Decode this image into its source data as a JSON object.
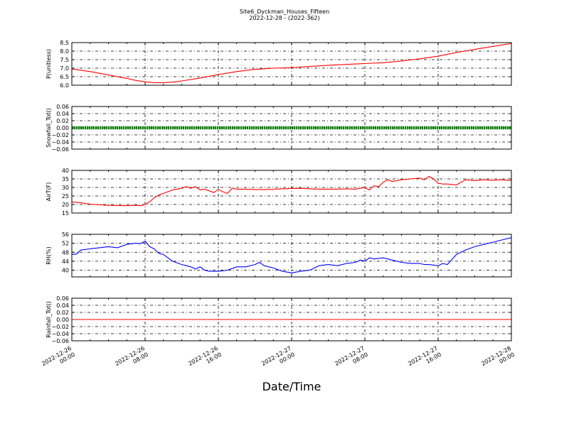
{
  "figure": {
    "title": "Site6_Dyckman_Houses_Fifteen",
    "subtitle": "2022-12-28 - (2022-362)",
    "xlabel": "Date/Time"
  },
  "chart_data": [
    {
      "type": "line",
      "ylabel": "P(unitless)",
      "ylim": [
        6.0,
        8.5
      ],
      "yticks": [
        "6.0",
        "6.5",
        "7.0",
        "7.5",
        "8.0",
        "8.5"
      ],
      "ytick_values": [
        6.0,
        6.5,
        7.0,
        7.5,
        8.0,
        8.5
      ],
      "color": "#ff0000",
      "grid": true,
      "x_hours": [
        0,
        2,
        4,
        6,
        7,
        8,
        9,
        10,
        11,
        12,
        14,
        16,
        18,
        20,
        22,
        24,
        26,
        28,
        30,
        32,
        34,
        36,
        38,
        40,
        42,
        44,
        46,
        48
      ],
      "values": [
        6.95,
        6.8,
        6.6,
        6.4,
        6.28,
        6.2,
        6.15,
        6.15,
        6.18,
        6.25,
        6.42,
        6.62,
        6.8,
        6.93,
        7.0,
        7.03,
        7.1,
        7.17,
        7.22,
        7.27,
        7.32,
        7.42,
        7.55,
        7.7,
        7.92,
        8.1,
        8.28,
        8.45
      ]
    },
    {
      "type": "line",
      "ylabel": "Snowfall_Tot()",
      "ylim": [
        -0.06,
        0.06
      ],
      "yticks": [
        "0.06",
        "0.04",
        "0.02",
        "0.00",
        "−0.02",
        "−0.04",
        "−0.06"
      ],
      "ytick_values": [
        0.06,
        0.04,
        0.02,
        0.0,
        -0.02,
        -0.04,
        -0.06
      ],
      "color": "#008000",
      "marker": "dot",
      "grid": true,
      "x_hours": [
        0,
        48
      ],
      "values": [
        0.0,
        0.0
      ]
    },
    {
      "type": "line",
      "ylabel": "AirT(F)",
      "ylim": [
        15,
        40
      ],
      "yticks": [
        "40",
        "35",
        "30",
        "25",
        "20",
        "15"
      ],
      "ytick_values": [
        40,
        35,
        30,
        25,
        20,
        15
      ],
      "color": "#ff0000",
      "grid": true,
      "x_hours": [
        0,
        1,
        2,
        3,
        4,
        5,
        6,
        7,
        7.5,
        8,
        8.5,
        9,
        9.5,
        10,
        11,
        12,
        12.5,
        13,
        13.5,
        14,
        14.5,
        15,
        15.5,
        16,
        16.5,
        17,
        17.5,
        18,
        19,
        20,
        21,
        22,
        23,
        24,
        25,
        26,
        27,
        28,
        29,
        30,
        31,
        32,
        32.5,
        33,
        33.5,
        34,
        34.5,
        35,
        36,
        37,
        38,
        38.5,
        39,
        39.5,
        40,
        40.5,
        41,
        42,
        43,
        44,
        45,
        46,
        47,
        48
      ],
      "values": [
        21.5,
        21.0,
        20.2,
        19.8,
        19.5,
        19.4,
        19.3,
        19.5,
        19.3,
        20.0,
        21.5,
        24.0,
        25.5,
        26.5,
        28.5,
        29.5,
        30.5,
        29.5,
        30.5,
        28.5,
        29.0,
        28.0,
        27.0,
        28.8,
        27.5,
        26.5,
        29.5,
        29.0,
        29.0,
        28.8,
        28.8,
        28.9,
        29.2,
        29.4,
        29.5,
        29.2,
        29.0,
        29.0,
        29.0,
        29.2,
        29.0,
        30.0,
        28.5,
        31.0,
        30.5,
        33.0,
        34.5,
        33.5,
        34.5,
        35.0,
        35.5,
        34.5,
        36.5,
        35.0,
        32.5,
        32.0,
        32.0,
        31.5,
        34.5,
        34.0,
        34.5,
        34.2,
        34.5,
        34.0
      ]
    },
    {
      "type": "line",
      "ylabel": "RH(%)",
      "ylim": [
        37,
        56
      ],
      "yticks": [
        "56",
        "52",
        "48",
        "44",
        "40"
      ],
      "ytick_values": [
        56,
        52,
        48,
        44,
        40
      ],
      "color": "#0000ff",
      "grid": true,
      "x_hours": [
        0,
        0.5,
        1,
        2,
        3,
        4,
        5,
        6,
        7,
        7.5,
        8,
        8.5,
        9,
        9.5,
        10,
        11,
        12,
        12.5,
        13,
        13.5,
        14,
        14.5,
        15,
        16,
        17,
        18,
        19,
        20,
        20.5,
        21,
        22,
        23,
        24,
        25,
        26,
        27,
        28,
        29,
        30,
        31,
        31.5,
        32,
        32.5,
        33,
        34,
        35,
        36,
        37,
        38,
        38.5,
        39,
        40,
        40.5,
        41,
        42,
        43,
        44,
        45,
        46,
        47,
        48
      ],
      "values": [
        47.0,
        47.2,
        49.0,
        49.5,
        50.0,
        50.5,
        50.0,
        51.5,
        52.0,
        51.8,
        53.0,
        50.5,
        49.5,
        47.5,
        47.0,
        44.0,
        42.5,
        42.0,
        41.5,
        40.5,
        41.5,
        40.0,
        39.5,
        39.5,
        40.0,
        41.5,
        41.5,
        42.5,
        43.5,
        42.0,
        41.0,
        39.5,
        38.8,
        39.5,
        40.0,
        42.0,
        42.5,
        42.0,
        43.0,
        43.5,
        44.5,
        44.0,
        45.5,
        45.0,
        45.5,
        44.5,
        43.5,
        43.0,
        43.0,
        42.5,
        42.5,
        42.0,
        43.0,
        42.5,
        47.0,
        49.0,
        50.5,
        51.5,
        52.5,
        53.5,
        54.5
      ]
    },
    {
      "type": "line",
      "ylabel": "Rainfall_Tot()",
      "ylim": [
        -0.06,
        0.06
      ],
      "yticks": [
        "0.06",
        "0.04",
        "0.02",
        "0.00",
        "−0.02",
        "−0.04",
        "−0.06"
      ],
      "ytick_values": [
        0.06,
        0.04,
        0.02,
        0.0,
        -0.02,
        -0.04,
        -0.06
      ],
      "color": "#ff0000",
      "grid": true,
      "x_hours": [
        0,
        48
      ],
      "values": [
        0.0,
        0.0
      ]
    }
  ],
  "x_axis": {
    "range_hours": [
      0,
      48
    ],
    "tick_hours": [
      0,
      8,
      16,
      24,
      32,
      40,
      48
    ],
    "tick_labels": [
      [
        "2022-12-26",
        "00:00"
      ],
      [
        "2022-12-26",
        "08:00"
      ],
      [
        "2022-12-26",
        "16:00"
      ],
      [
        "2022-12-27",
        "00:00"
      ],
      [
        "2022-12-27",
        "08:00"
      ],
      [
        "2022-12-27",
        "16:00"
      ],
      [
        "2022-12-28",
        "00:00"
      ]
    ]
  }
}
